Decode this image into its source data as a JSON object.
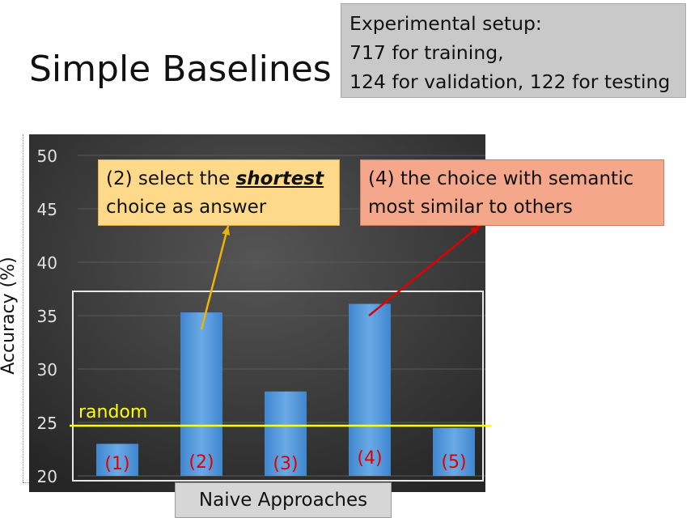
{
  "slide": {
    "title": "Simple Baselines",
    "setup_lines": [
      "Experimental setup:",
      "717 for training,",
      "124 for validation, 122 for testing"
    ]
  },
  "annotations": {
    "shortest": {
      "before": "(2) select the ",
      "emph": "shortest",
      "line2": "choice as answer",
      "color": "#ffd98a",
      "arrow_color": "#f0b400"
    },
    "semantic": {
      "line1": "(4) the choice with  semantic",
      "line2": "most similar to others",
      "color": "#f4a78b",
      "arrow_color": "#e00000"
    }
  },
  "chart_data": {
    "type": "bar",
    "categories": [
      "(1)",
      "(2)",
      "(3)",
      "(4)",
      "(5)"
    ],
    "values": [
      23,
      35.3,
      27.9,
      36.1,
      24.5
    ],
    "xlabel": "Naive Approaches",
    "ylabel": "Accuracy (%)",
    "ylim": [
      20,
      50
    ],
    "yticks": [
      20,
      25,
      30,
      35,
      40,
      45,
      50
    ],
    "grid": true,
    "reference_line": {
      "label": "random",
      "value": 24.7,
      "color": "#ffff00"
    },
    "bar_color": "#4f94d8",
    "background": "#333333",
    "label_color": "#e00000"
  }
}
